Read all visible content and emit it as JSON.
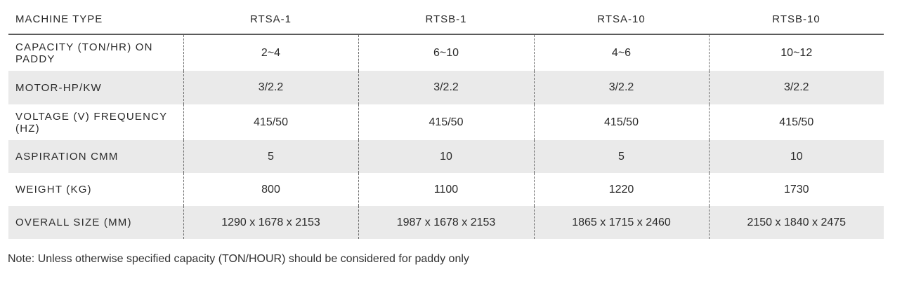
{
  "table": {
    "headers": [
      "MACHINE TYPE",
      "RTSA-1",
      "RTSB-1",
      "RTSA-10",
      "RTSB-10"
    ],
    "rows": [
      {
        "label": "CAPACITY (TON/HR) ON PADDY",
        "values": [
          "2~4",
          "6~10",
          "4~6",
          "10~12"
        ]
      },
      {
        "label": "MOTOR-HP/KW",
        "values": [
          "3/2.2",
          "3/2.2",
          "3/2.2",
          "3/2.2"
        ]
      },
      {
        "label": "VOLTAGE (V) FREQUENCY (HZ)",
        "values": [
          "415/50",
          "415/50",
          "415/50",
          "415/50"
        ]
      },
      {
        "label": "ASPIRATION CMM",
        "values": [
          "5",
          "10",
          "5",
          "10"
        ]
      },
      {
        "label": "WEIGHT (KG)",
        "values": [
          "800",
          "1100",
          "1220",
          "1730"
        ]
      },
      {
        "label": "OVERALL SIZE (MM)",
        "values": [
          "1290 x 1678 x 2153",
          "1987 x 1678 x 2153",
          "1865 x 1715 x 2460",
          "2150 x 1840 x 2475"
        ]
      }
    ]
  },
  "note": "Note: Unless otherwise specified capacity (TON/HOUR) should be considered for paddy only",
  "colors": {
    "row_shade": "#eaeaea",
    "text": "#2b2b2b",
    "header_rule": "#5a5a5a",
    "dashed_divider": "#6a6a6a"
  }
}
